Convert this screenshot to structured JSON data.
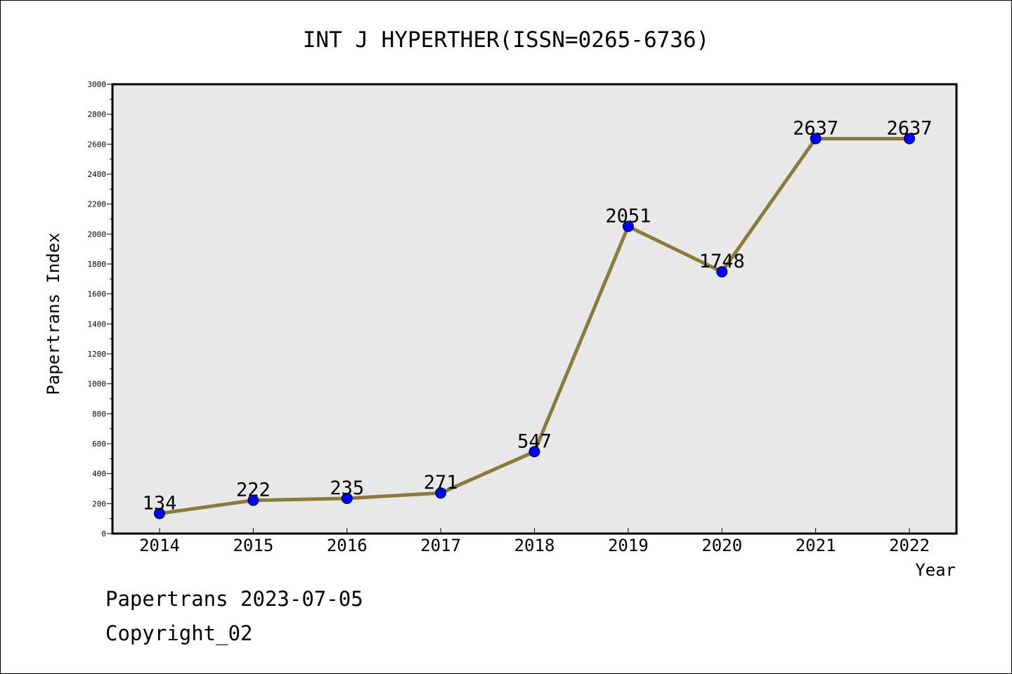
{
  "chart_data": {
    "type": "line",
    "title": "INT J HYPERTHER(ISSN=0265-6736)",
    "xlabel": "Year",
    "ylabel": "Papertrans Index",
    "categories": [
      "2014",
      "2015",
      "2016",
      "2017",
      "2018",
      "2019",
      "2020",
      "2021",
      "2022"
    ],
    "series": [
      {
        "values": [
          134,
          222,
          235,
          271,
          547,
          2051,
          1748,
          2637,
          2637
        ]
      }
    ],
    "data_labels": [
      "134",
      "222",
      "235",
      "271",
      "547",
      "2051",
      "1748",
      "2637",
      "2637"
    ],
    "ylim": [
      0,
      3000
    ],
    "yticks": [
      "0",
      "200",
      "400",
      "600",
      "800",
      "1000",
      "1200",
      "1400",
      "1600",
      "1800",
      "2000",
      "2200",
      "2400",
      "2600",
      "2800",
      "3000"
    ],
    "grid": false,
    "colors": {
      "line": "#8B7A3A",
      "marker": "#0000FF",
      "plot_background": "#E8E8E8"
    }
  },
  "footer": {
    "source": "Papertrans 2023-07-05",
    "copyright": "Copyright_02"
  }
}
